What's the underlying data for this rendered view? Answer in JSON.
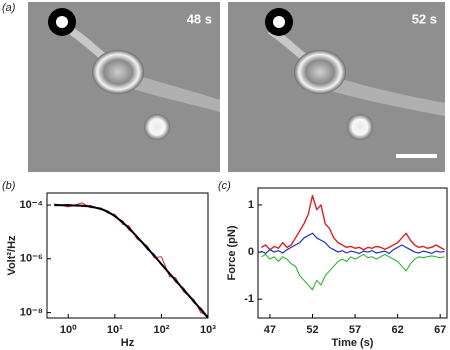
{
  "figure": {
    "panel_labels": [
      "(a)",
      "(b)",
      "(c)"
    ],
    "image_labels": [
      "48 s",
      "52 s"
    ]
  },
  "chart_data": [
    {
      "type": "line",
      "xlabel": "Hz",
      "ylabel": "Volt²/Hz",
      "xlog": true,
      "ylog": true,
      "xlim": [
        0.35,
        1000
      ],
      "ylim": [
        6.3e-09,
        0.00028
      ],
      "xticks": [
        {
          "value": 1,
          "label": "10⁰"
        },
        {
          "value": 10,
          "label": "10¹"
        },
        {
          "value": 100,
          "label": "10²"
        },
        {
          "value": 1000,
          "label": "10³"
        }
      ],
      "yticks": [
        {
          "value": 0.0001,
          "label": "10⁻⁴"
        },
        {
          "value": 1e-06,
          "label": "10⁻⁶"
        },
        {
          "value": 1e-08,
          "label": "10⁻⁸"
        }
      ],
      "x": [
        0.5,
        1,
        2,
        3,
        5,
        7,
        10,
        15,
        20,
        30,
        50,
        70,
        100,
        150,
        200,
        300,
        500,
        700,
        1000
      ],
      "series": [
        {
          "color": "#e02020",
          "width": 1,
          "values": [
            0.00011,
            8.5e-05,
            0.00012,
            8e-05,
            7.8e-05,
            5e-05,
            4.5e-05,
            1.9e-05,
            1.7e-05,
            5.5e-06,
            3e-06,
            1.1e-06,
            1.2e-06,
            2.2e-07,
            2e-07,
            6e-08,
            3e-08,
            1e-08,
            7.5e-09
          ]
        },
        {
          "color": "#2030c0",
          "width": 1,
          "values": [
            9.5e-05,
            0.000105,
            9e-05,
            9.5e-05,
            6.8e-05,
            6e-05,
            3.6e-05,
            2.5e-05,
            1.2e-05,
            7e-06,
            2.2e-06,
            1.5e-06,
            5.8e-07,
            3e-07,
            1.4e-07,
            8e-08,
            2.3e-08,
            1.5e-08,
            6.8e-09
          ]
        },
        {
          "color": "#000000",
          "width": 2,
          "values": [
            9.96e-05,
            9.8e-05,
            9.4e-05,
            8.8e-05,
            7.2e-05,
            5.7e-05,
            3.9e-05,
            2.2e-05,
            1.4e-05,
            6.6e-06,
            2.5e-06,
            1.3e-06,
            6.4e-07,
            2.8e-07,
            1.6e-07,
            7.1e-08,
            2.6e-08,
            1.3e-08,
            6.4e-09
          ]
        }
      ]
    },
    {
      "type": "line",
      "xlabel": "Time (s)",
      "ylabel": "Force (pN)",
      "xlim": [
        45.6,
        67.8
      ],
      "ylim": [
        -1.4,
        1.36
      ],
      "xticks": [
        47,
        52,
        57,
        62,
        67
      ],
      "yticks": [
        1,
        0,
        -1
      ],
      "x": [
        46,
        46.5,
        47,
        47.5,
        48,
        48.5,
        49,
        49.5,
        50,
        50.5,
        51,
        51.5,
        52,
        52.5,
        53,
        53.5,
        54,
        54.5,
        55,
        55.5,
        56,
        56.5,
        57,
        57.5,
        58,
        58.5,
        59,
        59.5,
        60,
        60.5,
        61,
        61.5,
        62,
        62.5,
        63,
        63.5,
        64,
        64.5,
        65,
        65.5,
        66,
        66.5,
        67,
        67.5
      ],
      "series": [
        {
          "color": "#20b020",
          "width": 1,
          "values": [
            -0.1,
            -0.05,
            -0.15,
            -0.1,
            -0.2,
            -0.1,
            -0.15,
            -0.25,
            -0.3,
            -0.5,
            -0.6,
            -0.7,
            -0.8,
            -0.6,
            -0.7,
            -0.5,
            -0.4,
            -0.3,
            -0.2,
            -0.15,
            -0.2,
            -0.1,
            -0.15,
            -0.1,
            -0.05,
            -0.12,
            -0.1,
            -0.15,
            -0.1,
            -0.05,
            -0.1,
            -0.15,
            -0.2,
            -0.3,
            -0.4,
            -0.25,
            -0.15,
            -0.1,
            -0.12,
            -0.1,
            -0.08,
            -0.1,
            -0.12,
            -0.1
          ]
        },
        {
          "color": "#e02020",
          "width": 1.4,
          "values": [
            0.1,
            0.15,
            0.05,
            0.12,
            0.08,
            0.2,
            0.1,
            0.15,
            0.3,
            0.45,
            0.6,
            0.8,
            1.2,
            0.9,
            1.0,
            0.6,
            0.5,
            0.3,
            0.2,
            0.15,
            0.1,
            0.12,
            0.08,
            0.1,
            0.05,
            0.1,
            0.08,
            0.12,
            0.1,
            0.06,
            0.1,
            0.15,
            0.2,
            0.3,
            0.4,
            0.25,
            0.15,
            0.1,
            0.12,
            0.08,
            0.1,
            0.15,
            0.1,
            0.05
          ]
        },
        {
          "color": "#2030c0",
          "width": 1.2,
          "values": [
            0.02,
            -0.03,
            0.05,
            0,
            0.03,
            -0.02,
            0.05,
            0.1,
            0.15,
            0.2,
            0.3,
            0.35,
            0.4,
            0.3,
            0.25,
            0.2,
            0.1,
            0.05,
            0,
            0.03,
            -0.02,
            0.02,
            0,
            -0.03,
            0.02,
            0,
            0.03,
            -0.02,
            0,
            0.02,
            -0.03,
            0.05,
            0.1,
            0.15,
            0.1,
            0.05,
            0,
            -0.02,
            0.02,
            0,
            -0.03,
            0.02,
            0,
            0.01
          ]
        }
      ]
    }
  ]
}
